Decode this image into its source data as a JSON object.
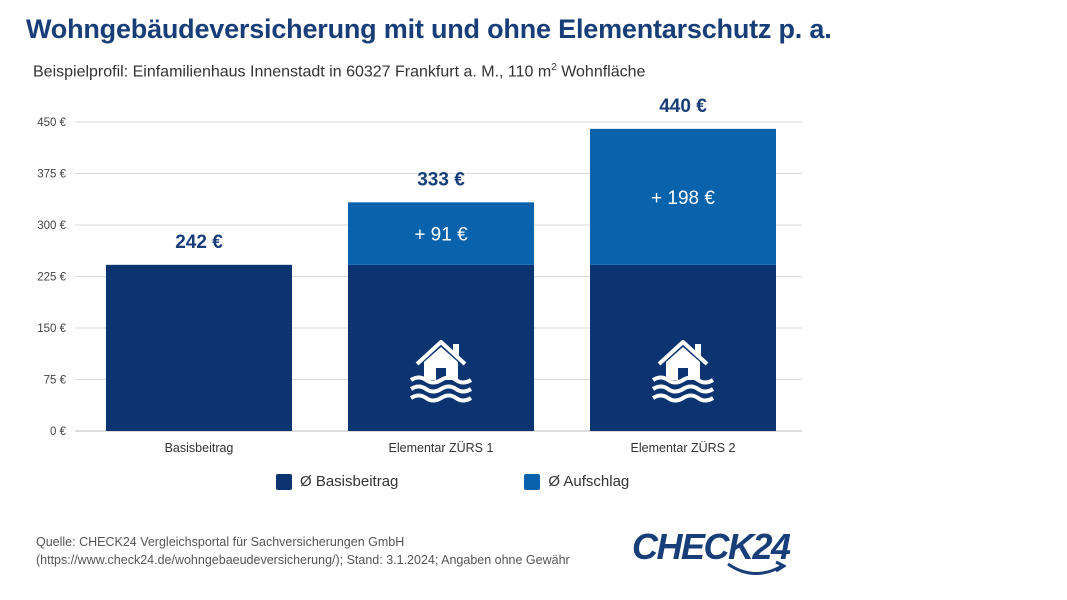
{
  "header": {
    "title": "Wohngebäudeversicherung mit und ohne Elementarschutz p. a.",
    "subtitle_main": "Beispielprofil: Einfamilienhaus Innenstadt in 60327 Frankfurt a. M., 110  m",
    "subtitle_sup": "2",
    "subtitle_end": " Wohnfläche"
  },
  "chart_data": {
    "type": "bar",
    "stacked": true,
    "categories": [
      "Basisbeitrag",
      "Elementar ZÜRS 1",
      "Elementar ZÜRS 2"
    ],
    "series": [
      {
        "name": "Ø Basisbeitrag",
        "values": [
          242,
          242,
          242
        ],
        "color": "#0b3470"
      },
      {
        "name": "Ø Aufschlag",
        "values": [
          0,
          91,
          198
        ],
        "color": "#0862ac"
      }
    ],
    "totals": [
      242,
      333,
      440
    ],
    "total_labels": [
      "242 €",
      "333 €",
      "440 €"
    ],
    "segment_labels": [
      "",
      "+ 91 €",
      "+ 198 €"
    ],
    "ylim": [
      0,
      450
    ],
    "yticks": [
      0,
      75,
      150,
      225,
      300,
      375,
      450
    ],
    "ytick_labels": [
      "0 €",
      "75 €",
      "150 €",
      "225 €",
      "300 €",
      "375 €",
      "450 €"
    ],
    "grid": true,
    "legend_position": "bottom",
    "icons": [
      "",
      "flooded-house-icon",
      "flooded-house-icon"
    ]
  },
  "footer": {
    "source_line1": "Quelle: CHECK24 Vergleichsportal für Sachversicherungen GmbH",
    "source_line2": "(https://www.check24.de/wohngebaeudeversicherung/); Stand: 3.1.2024; Angaben ohne Gewähr",
    "logo_text": "CHECK24"
  }
}
